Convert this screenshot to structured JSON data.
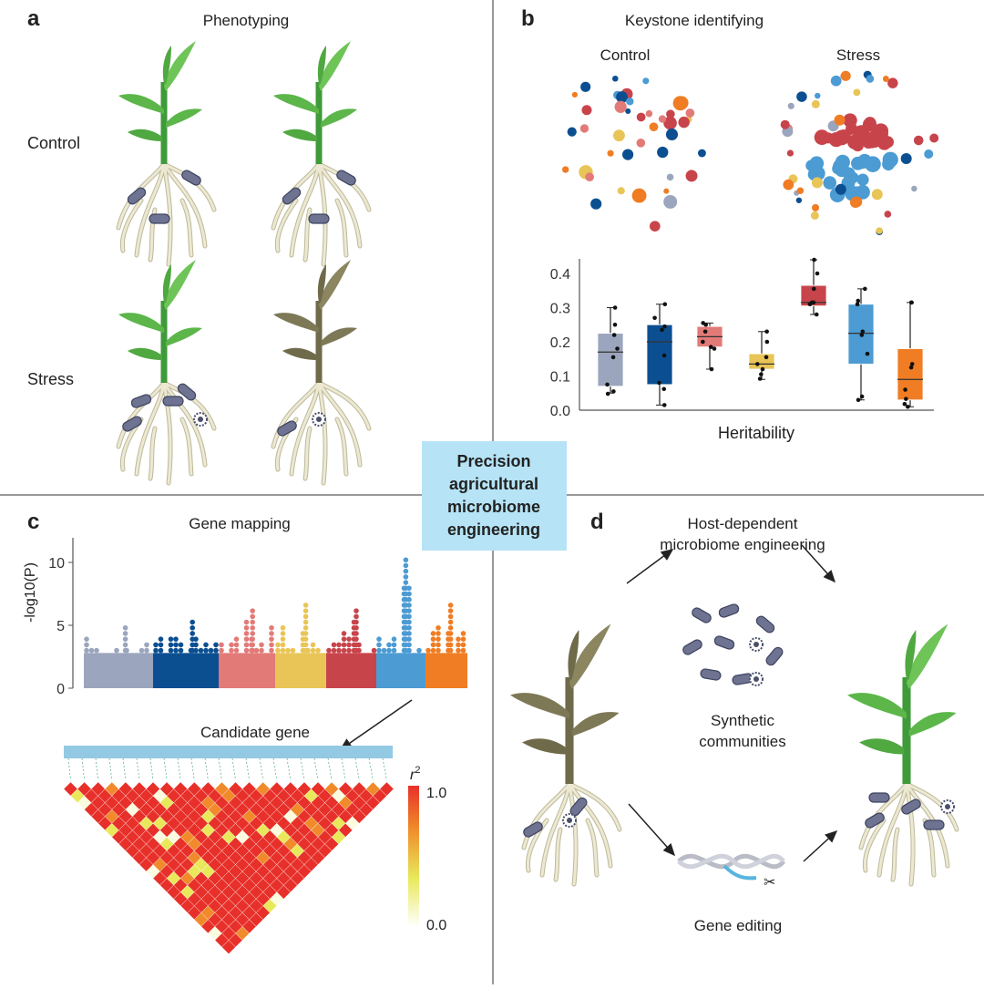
{
  "center_label": {
    "lines": [
      "Precision",
      "agricultural",
      "microbiome",
      "engineering"
    ],
    "bg": "#b6e3f5"
  },
  "panel_a": {
    "letter": "a",
    "title": "Phenotyping",
    "row_labels": [
      "Control",
      "Stress"
    ]
  },
  "panel_b": {
    "letter": "b",
    "title": "Keystone identifying",
    "network_labels": [
      "Control",
      "Stress"
    ],
    "chart_data": {
      "type": "box",
      "xlabel": "Heritability",
      "ylim": [
        0,
        0.45
      ],
      "yticks": [
        "0.0",
        "0.1",
        "0.2",
        "0.3",
        "0.4"
      ],
      "series": [
        {
          "color": "#9ba5bd",
          "min": 0.05,
          "q1": 0.07,
          "median": 0.17,
          "q3": 0.225,
          "max": 0.3,
          "points": [
            0.3,
            0.25,
            0.22,
            0.18,
            0.155,
            0.075,
            0.055,
            0.048
          ]
        },
        {
          "color": "#0b4f91",
          "min": 0.015,
          "q1": 0.075,
          "median": 0.2,
          "q3": 0.25,
          "max": 0.31,
          "points": [
            0.31,
            0.27,
            0.245,
            0.235,
            0.16,
            0.08,
            0.062,
            0.015
          ]
        },
        {
          "color": "#e27b78",
          "min": 0.12,
          "q1": 0.185,
          "median": 0.215,
          "q3": 0.245,
          "max": 0.255,
          "points": [
            0.255,
            0.25,
            0.23,
            0.2,
            0.185,
            0.18,
            0.12
          ]
        },
        {
          "color": "#e8c556",
          "min": 0.09,
          "q1": 0.12,
          "median": 0.135,
          "q3": 0.165,
          "max": 0.23,
          "points": [
            0.23,
            0.2,
            0.155,
            0.135,
            0.12,
            0.105,
            0.092
          ]
        },
        {
          "color": "#c8444b",
          "min": 0.28,
          "q1": 0.305,
          "median": 0.315,
          "q3": 0.365,
          "max": 0.44,
          "points": [
            0.44,
            0.4,
            0.355,
            0.315,
            0.315,
            0.31,
            0.28
          ]
        },
        {
          "color": "#4c9bd3",
          "min": 0.03,
          "q1": 0.135,
          "median": 0.225,
          "q3": 0.31,
          "max": 0.355,
          "points": [
            0.355,
            0.32,
            0.31,
            0.23,
            0.22,
            0.165,
            0.04,
            0.03
          ]
        },
        {
          "color": "#f07d23",
          "min": 0.01,
          "q1": 0.03,
          "median": 0.09,
          "q3": 0.18,
          "max": 0.315,
          "points": [
            0.315,
            0.315,
            0.135,
            0.125,
            0.06,
            0.033,
            0.018,
            0.01
          ]
        }
      ]
    }
  },
  "panel_c": {
    "letter": "c",
    "title": "Gene mapping",
    "candidate_label": "Candidate gene",
    "chart_data": {
      "type": "manhattan",
      "ylabel": "-log10(P)",
      "ylim": [
        0,
        12
      ],
      "yticks": [
        "0",
        "5",
        "10"
      ],
      "chromosome_colors": [
        "#9ba5bd",
        "#0b4f91",
        "#e27b78",
        "#e8c556",
        "#c8444b",
        "#4c9bd3",
        "#f07d23"
      ],
      "peak_values": [
        5.2,
        5.3,
        6.2,
        6.8,
        6.2,
        10.3,
        6.9
      ]
    },
    "colorbar": {
      "title": "r",
      "title_sup": "2",
      "max_label": "1.0",
      "min_label": "0.0"
    }
  },
  "panel_d": {
    "letter": "d",
    "title_lines": [
      "Host-dependent",
      "microbiome engineering"
    ],
    "top_route": [
      "Synthetic",
      "communities"
    ],
    "bottom_route": "Gene editing"
  }
}
